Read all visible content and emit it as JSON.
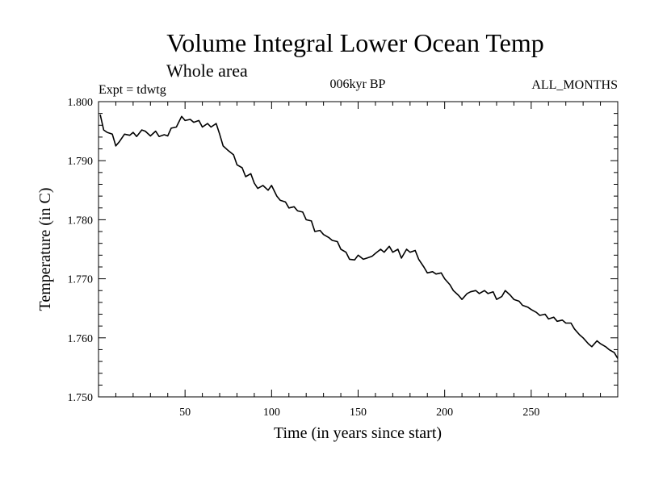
{
  "chart_data": {
    "type": "line",
    "title": "Volume Integral Lower Ocean Temp",
    "subtitle": "Whole area",
    "experiment": "Expt = tdwtg",
    "period": "006kyr BP",
    "months": "ALL_MONTHS",
    "xlabel": "Time (in years since start)",
    "ylabel": "Temperature (in C)",
    "xlim": [
      0,
      300
    ],
    "ylim": [
      1.75,
      1.8
    ],
    "x_ticks": [
      50,
      100,
      150,
      200,
      250
    ],
    "x_tick_labels": [
      "50",
      "100",
      "150",
      "200",
      "250"
    ],
    "y_ticks": [
      1.75,
      1.76,
      1.77,
      1.78,
      1.79,
      1.8
    ],
    "y_tick_labels": [
      "1.750",
      "1.760",
      "1.770",
      "1.780",
      "1.790",
      "1.800"
    ],
    "grid": false,
    "series": [
      {
        "name": "Volume integral lower ocean temperature",
        "color": "#000000",
        "x": [
          1,
          3,
          5,
          8,
          10,
          12,
          15,
          18,
          20,
          22,
          25,
          27,
          30,
          33,
          35,
          38,
          40,
          42,
          45,
          48,
          50,
          53,
          55,
          58,
          60,
          63,
          65,
          68,
          70,
          72,
          75,
          78,
          80,
          83,
          85,
          88,
          90,
          92,
          95,
          98,
          100,
          103,
          105,
          108,
          110,
          113,
          115,
          118,
          120,
          123,
          125,
          128,
          130,
          133,
          135,
          138,
          140,
          143,
          145,
          148,
          150,
          153,
          155,
          158,
          160,
          163,
          165,
          168,
          170,
          173,
          175,
          178,
          180,
          183,
          185,
          188,
          190,
          193,
          195,
          198,
          200,
          203,
          205,
          208,
          210,
          213,
          215,
          218,
          220,
          223,
          225,
          228,
          230,
          233,
          235,
          238,
          240,
          243,
          245,
          248,
          250,
          253,
          255,
          258,
          260,
          263,
          265,
          268,
          270,
          273,
          275,
          278,
          280,
          283,
          285,
          288,
          290,
          293,
          295,
          298,
          300
        ],
        "y": [
          1.7978,
          1.7952,
          1.7948,
          1.7945,
          1.7925,
          1.7932,
          1.7945,
          1.7943,
          1.7948,
          1.7941,
          1.7952,
          1.795,
          1.7942,
          1.795,
          1.7941,
          1.7944,
          1.7942,
          1.7955,
          1.7957,
          1.7975,
          1.7968,
          1.797,
          1.7965,
          1.7968,
          1.7957,
          1.7963,
          1.7957,
          1.7963,
          1.7945,
          1.7925,
          1.7917,
          1.791,
          1.7893,
          1.7888,
          1.7873,
          1.7878,
          1.7862,
          1.7853,
          1.7858,
          1.785,
          1.7858,
          1.784,
          1.7833,
          1.783,
          1.782,
          1.7822,
          1.7815,
          1.7813,
          1.78,
          1.7798,
          1.778,
          1.7782,
          1.7775,
          1.777,
          1.7765,
          1.7763,
          1.775,
          1.7745,
          1.7733,
          1.7732,
          1.774,
          1.7733,
          1.7735,
          1.7738,
          1.7743,
          1.775,
          1.7745,
          1.7755,
          1.7745,
          1.775,
          1.7735,
          1.775,
          1.7745,
          1.7748,
          1.7733,
          1.772,
          1.771,
          1.7712,
          1.7708,
          1.771,
          1.77,
          1.769,
          1.768,
          1.7672,
          1.7665,
          1.7675,
          1.7678,
          1.768,
          1.7675,
          1.768,
          1.7675,
          1.7678,
          1.7665,
          1.767,
          1.768,
          1.7672,
          1.7665,
          1.7662,
          1.7655,
          1.7652,
          1.7648,
          1.7643,
          1.7638,
          1.764,
          1.7632,
          1.7635,
          1.7628,
          1.763,
          1.7625,
          1.7625,
          1.7615,
          1.7605,
          1.76,
          1.759,
          1.7585,
          1.7595,
          1.759,
          1.7585,
          1.758,
          1.7575,
          1.7565
        ]
      }
    ]
  }
}
